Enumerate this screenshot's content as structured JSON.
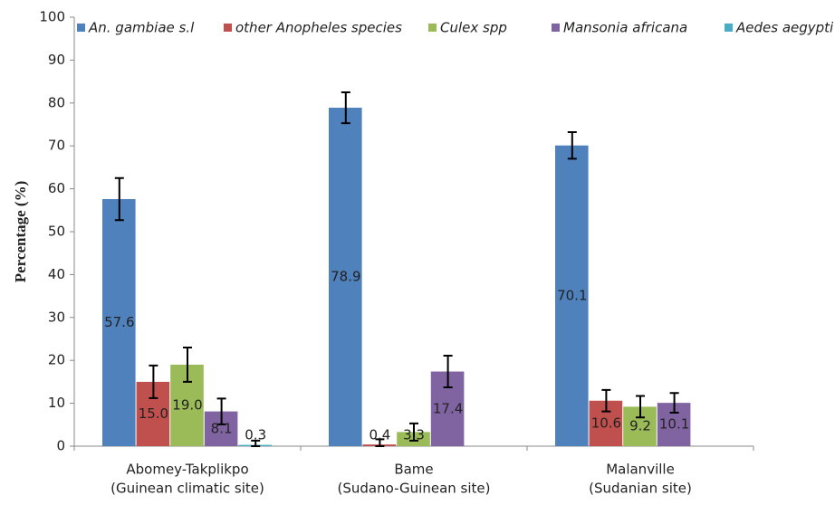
{
  "chart_data": {
    "type": "bar",
    "y_label": "Percentage (%)",
    "categories": [
      [
        "Abomey-Takplikpo",
        "(Guinean climatic site)"
      ],
      [
        "Bame",
        "(Sudano-Guinean site)"
      ],
      [
        "Malanville",
        "(Sudanian site)"
      ]
    ],
    "series": [
      {
        "name": "An. gambiae s.l",
        "color": "#4f81bd",
        "values": [
          57.6,
          78.9,
          70.1
        ],
        "value_labels": [
          "57.6",
          "78.9",
          "70.1"
        ],
        "errors": [
          4.9,
          3.6,
          3.1
        ]
      },
      {
        "name": "other Anopheles species",
        "color": "#c0504d",
        "values": [
          15.0,
          0.4,
          10.6
        ],
        "value_labels": [
          "15.0",
          "0.4",
          "10.6"
        ],
        "errors": [
          3.8,
          1.2,
          2.5
        ]
      },
      {
        "name": "Culex spp",
        "color": "#9bbb59",
        "values": [
          19.0,
          3.3,
          9.2
        ],
        "value_labels": [
          "19.0",
          "3.3",
          "9.2"
        ],
        "errors": [
          4.0,
          2.0,
          2.5
        ]
      },
      {
        "name": "Mansonia africana",
        "color": "#8064a2",
        "values": [
          8.1,
          17.4,
          10.1
        ],
        "value_labels": [
          "8.1",
          "17.4",
          "10.1"
        ],
        "errors": [
          3.0,
          3.7,
          2.3
        ]
      },
      {
        "name": "Aedes aegypti",
        "color": "#4bacc6",
        "values": [
          0.3,
          null,
          null
        ],
        "value_labels": [
          "0.3",
          null,
          null
        ],
        "errors": [
          1.0,
          null,
          null
        ]
      }
    ],
    "ylim": [
      0,
      100
    ],
    "yticks": [
      0,
      10,
      20,
      30,
      40,
      50,
      60,
      70,
      80,
      90,
      100
    ],
    "grid": false,
    "legend": "top"
  }
}
